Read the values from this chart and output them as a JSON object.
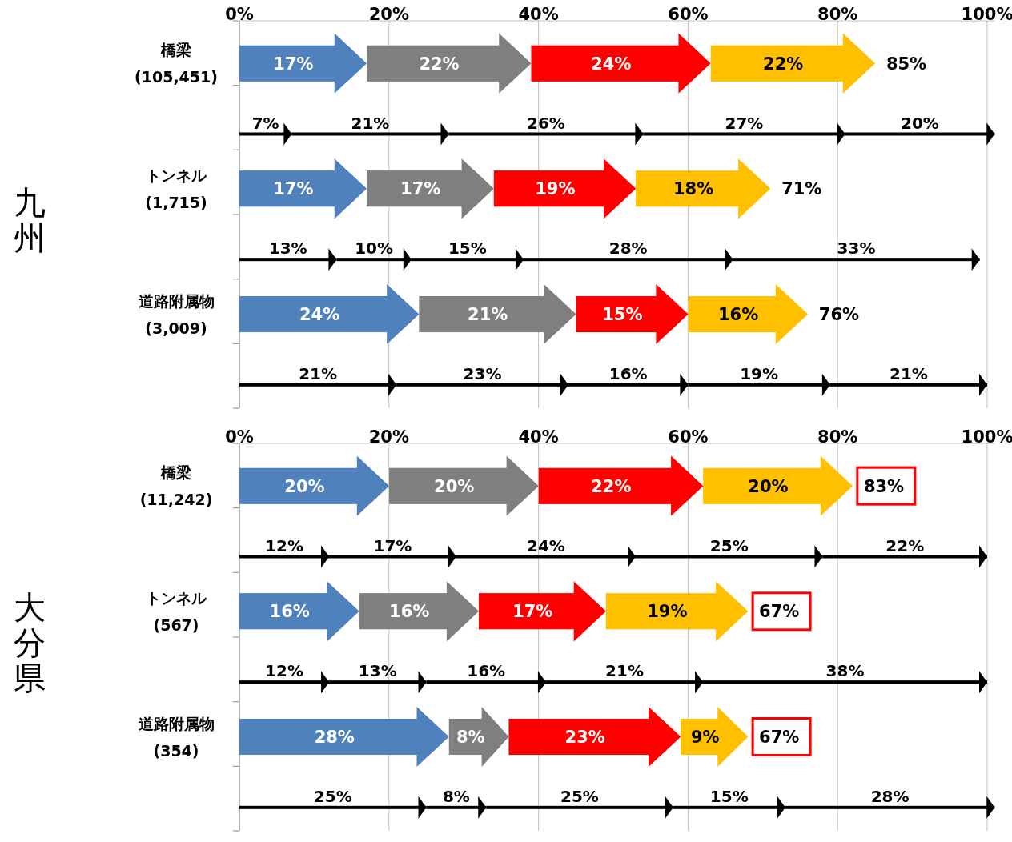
{
  "chart_data": [
    {
      "type": "bar",
      "orientation": "horizontal",
      "stacked": true,
      "title": "九州",
      "grid": "x",
      "categories": [
        "橋梁\n(105,451)",
        null,
        "トンネル\n(1,715)",
        null,
        "道路附属物\n(3,009)",
        null
      ],
      "xlim": [
        0,
        101
      ],
      "xticks": [
        {
          "value": 0,
          "label": "0%"
        },
        {
          "value": 20,
          "label": "20%"
        },
        {
          "value": 40,
          "label": "40%"
        },
        {
          "value": 60,
          "label": "60%"
        },
        {
          "value": 80,
          "label": "80%"
        },
        {
          "value": 100,
          "label": "100%"
        }
      ],
      "series": [
        {
          "color": "#4f81bd",
          "values": [
            17,
            null,
            17,
            null,
            24,
            null
          ],
          "value_labels": [
            "17%",
            null,
            "17%",
            null,
            "24%",
            null
          ]
        },
        {
          "color": "#7f7f7f",
          "values": [
            22,
            null,
            17,
            null,
            21,
            null
          ],
          "value_labels": [
            "22%",
            null,
            "17%",
            null,
            "21%",
            null
          ]
        },
        {
          "color": "#ff0000",
          "values": [
            24,
            null,
            19,
            null,
            15,
            null
          ],
          "value_labels": [
            "24%",
            null,
            "19%",
            null,
            "15%",
            null
          ]
        },
        {
          "color": "#ffc000",
          "values": [
            22,
            null,
            18,
            null,
            16,
            null
          ],
          "value_labels": [
            "22%",
            null,
            "18%",
            null,
            "16%",
            null
          ]
        },
        {
          "color": "#000000",
          "values": [
            null,
            7,
            null,
            13,
            null,
            21
          ],
          "value_labels": [
            null,
            "7%",
            null,
            "13%",
            null,
            "21%"
          ]
        },
        {
          "color": "#000000",
          "values": [
            null,
            21,
            null,
            10,
            null,
            23
          ],
          "value_labels": [
            null,
            "21%",
            null,
            "10%",
            null,
            "23%"
          ]
        },
        {
          "color": "#000000",
          "values": [
            null,
            26,
            null,
            15,
            null,
            16
          ],
          "value_labels": [
            null,
            "26%",
            null,
            "15%",
            null,
            "16%"
          ]
        },
        {
          "color": "#000000",
          "values": [
            null,
            27,
            null,
            28,
            null,
            19
          ],
          "value_labels": [
            null,
            "27%",
            null,
            "28%",
            null,
            "19%"
          ]
        },
        {
          "color": "#000000",
          "values": [
            null,
            20,
            null,
            33,
            null,
            21
          ],
          "value_labels": [
            null,
            "20%",
            null,
            "33%",
            null,
            "21%"
          ]
        }
      ],
      "totals": [
        "85%",
        null,
        "71%",
        null,
        "76%",
        null
      ]
    },
    {
      "type": "bar",
      "orientation": "horizontal",
      "stacked": true,
      "title": "大分県",
      "grid": "x",
      "categories": [
        "橋梁\n(11,242)",
        null,
        "トンネル\n(567)",
        null,
        "道路附属物\n(354)",
        null
      ],
      "xlim": [
        0,
        101
      ],
      "xticks": [
        {
          "value": 0,
          "label": "0%"
        },
        {
          "value": 20,
          "label": "20%"
        },
        {
          "value": 40,
          "label": "40%"
        },
        {
          "value": 60,
          "label": "60%"
        },
        {
          "value": 80,
          "label": "80%"
        },
        {
          "value": 100,
          "label": "100%"
        }
      ],
      "series": [
        {
          "color": "#4f81bd",
          "values": [
            20,
            null,
            16,
            null,
            28,
            null
          ],
          "value_labels": [
            "20%",
            null,
            "16%",
            null,
            "28%",
            null
          ]
        },
        {
          "color": "#7f7f7f",
          "values": [
            20,
            null,
            16,
            null,
            8,
            null
          ],
          "value_labels": [
            "20%",
            null,
            "16%",
            null,
            "8%",
            null
          ]
        },
        {
          "color": "#ff0000",
          "values": [
            22,
            null,
            17,
            null,
            23,
            null
          ],
          "value_labels": [
            "22%",
            null,
            "17%",
            null,
            "23%",
            null
          ]
        },
        {
          "color": "#ffc000",
          "values": [
            20,
            null,
            19,
            null,
            9,
            null
          ],
          "value_labels": [
            "20%",
            null,
            "19%",
            null,
            "9%",
            null
          ]
        },
        {
          "color": "#000000",
          "values": [
            null,
            12,
            null,
            12,
            null,
            25
          ],
          "value_labels": [
            null,
            "12%",
            null,
            "12%",
            null,
            "25%"
          ]
        },
        {
          "color": "#000000",
          "values": [
            null,
            17,
            null,
            13,
            null,
            8
          ],
          "value_labels": [
            null,
            "17%",
            null,
            "13%",
            null,
            "8%"
          ]
        },
        {
          "color": "#000000",
          "values": [
            null,
            24,
            null,
            16,
            null,
            25
          ],
          "value_labels": [
            null,
            "24%",
            null,
            "16%",
            null,
            "25%"
          ]
        },
        {
          "color": "#000000",
          "values": [
            null,
            25,
            null,
            21,
            null,
            15
          ],
          "value_labels": [
            null,
            "25%",
            null,
            "21%",
            null,
            "15%"
          ]
        },
        {
          "color": "#000000",
          "values": [
            null,
            22,
            null,
            38,
            null,
            28
          ],
          "value_labels": [
            null,
            "22%",
            null,
            "38%",
            null,
            "28%"
          ]
        }
      ],
      "totals": [
        "83%",
        null,
        "67%",
        null,
        "67%",
        null
      ]
    }
  ]
}
